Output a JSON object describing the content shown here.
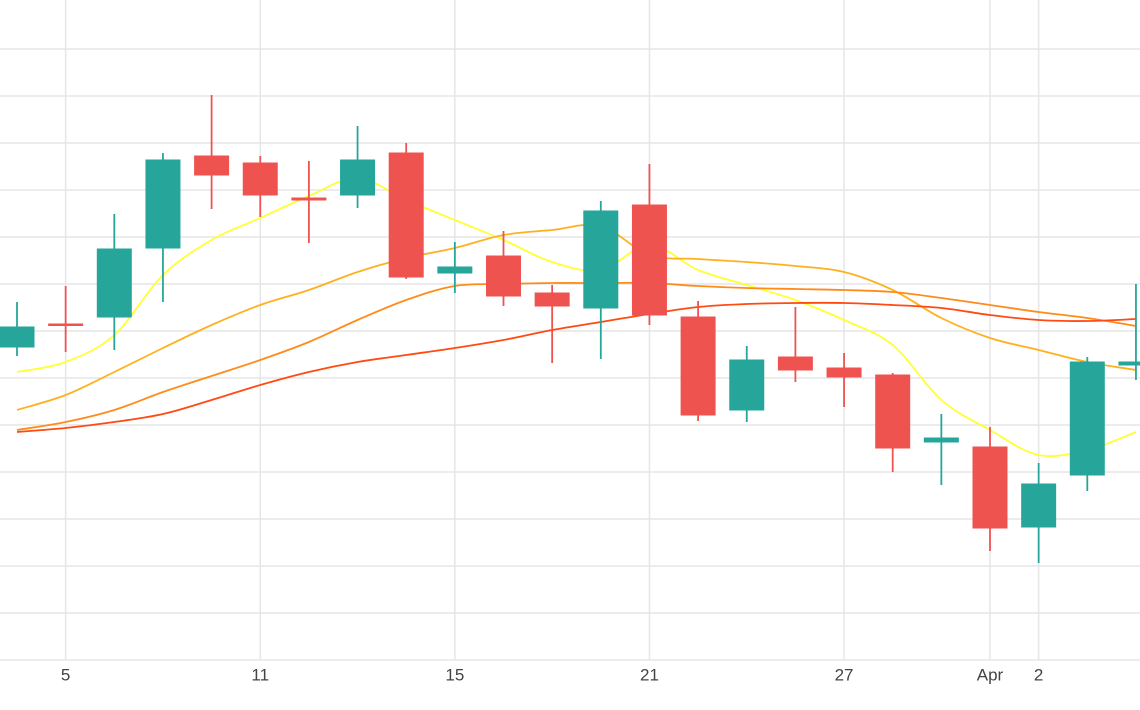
{
  "chart_data": {
    "type": "candlestick",
    "categories": [
      null,
      "5",
      null,
      null,
      null,
      "11",
      null,
      null,
      null,
      "15",
      null,
      null,
      null,
      "21",
      null,
      null,
      null,
      "27",
      null,
      null,
      "Apr",
      "2",
      null,
      null
    ],
    "open": [
      313,
      336,
      343,
      412,
      504,
      497,
      462,
      465,
      507,
      387,
      404,
      367,
      352,
      455,
      343,
      250,
      303,
      292,
      285,
      218,
      213,
      133,
      185,
      295
    ],
    "high": [
      358,
      374,
      446,
      507,
      565,
      504,
      499,
      534,
      517,
      418,
      429,
      375,
      459,
      496,
      359,
      314,
      353,
      307,
      287,
      246,
      233,
      197,
      303,
      376
    ],
    "low": [
      304,
      308,
      310,
      358,
      451,
      443,
      417,
      452,
      381,
      367,
      354,
      297,
      301,
      335,
      239,
      238,
      278,
      253,
      188,
      175,
      109,
      97,
      169,
      280
    ],
    "close": [
      333,
      335,
      411,
      500,
      485,
      465,
      460,
      500,
      383,
      393,
      364,
      354,
      449,
      345,
      245,
      300,
      290,
      283,
      212,
      222,
      132,
      176,
      298,
      298
    ],
    "increasing_color": "#26a69a",
    "decreasing_color": "#ef5350",
    "series": [
      {
        "color": "#ffff33",
        "values": [
          288,
          298,
          325,
          385,
          420,
          442,
          464,
          482,
          460,
          440,
          420,
          398,
          390,
          415,
          390,
          375,
          360,
          340,
          315,
          260,
          230,
          205,
          210,
          228
        ]
      },
      {
        "color": "#ffb020",
        "values": [
          250,
          265,
          288,
          312,
          335,
          355,
          370,
          388,
          402,
          412,
          425,
          430,
          434,
          405,
          401,
          398,
          394,
          388,
          370,
          342,
          322,
          310,
          298,
          290
        ]
      },
      {
        "color": "#ff8c1a",
        "values": [
          230,
          238,
          250,
          268,
          284,
          300,
          318,
          340,
          360,
          374,
          376,
          377,
          377,
          377,
          374,
          372,
          371,
          370,
          368,
          362,
          355,
          348,
          342,
          334
        ]
      },
      {
        "color": "#ff4a12",
        "values": [
          228,
          232,
          238,
          246,
          260,
          275,
          288,
          298,
          305,
          312,
          320,
          330,
          338,
          346,
          353,
          356,
          357,
          357,
          355,
          352,
          345,
          340,
          339,
          341
        ]
      }
    ],
    "ylim": [
      0,
      660
    ],
    "yticks": [
      0,
      47,
      94,
      141,
      188,
      235,
      282,
      329,
      376,
      423,
      470,
      517,
      564,
      611
    ],
    "grid": true
  }
}
